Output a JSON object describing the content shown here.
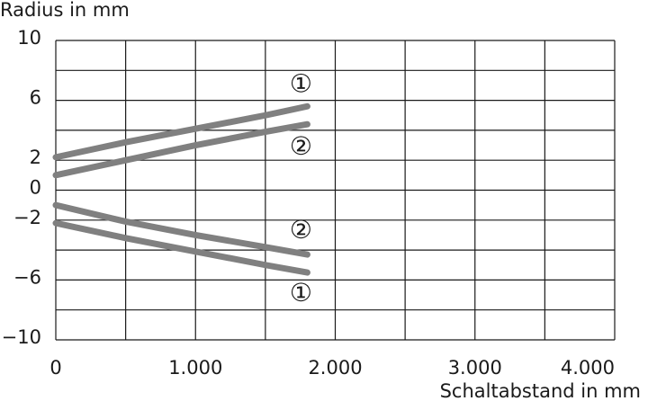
{
  "chart_data": {
    "type": "line",
    "y_label": "Radius in mm",
    "x_label": "Schaltabstand in mm",
    "xlim": [
      0,
      4000
    ],
    "ylim": [
      -10,
      10
    ],
    "xticks": [
      0,
      {
        "value": 1000,
        "label": "1.000"
      },
      {
        "value": 2000,
        "label": "2.000"
      },
      {
        "value": 3000,
        "label": "3.000"
      },
      {
        "value": 4000,
        "label": "4.000"
      }
    ],
    "yticks": [
      10,
      6,
      2,
      0,
      {
        "value": -2,
        "label": "−2"
      },
      {
        "value": -6,
        "label": "−6"
      },
      {
        "value": -10,
        "label": "−10"
      }
    ],
    "xgrid": [
      0,
      500,
      1000,
      1500,
      2000,
      2500,
      3000,
      3500,
      4000
    ],
    "ygrid": [
      10,
      8,
      6,
      4,
      2,
      0,
      -2,
      -4,
      -6,
      -8,
      -10
    ],
    "x": [
      0,
      500,
      1000,
      1500,
      1800
    ],
    "series": [
      {
        "name": "①",
        "color": "#808080",
        "values": [
          2.2,
          3.2,
          4.1,
          5.0,
          5.6
        ]
      },
      {
        "name": "②",
        "color": "#808080",
        "values": [
          1.0,
          2.0,
          3.0,
          3.9,
          4.4
        ]
      },
      {
        "name": "②",
        "color": "#808080",
        "values": [
          -1.0,
          -2.1,
          -3.0,
          -3.8,
          -4.3
        ]
      },
      {
        "name": "①",
        "color": "#808080",
        "values": [
          -2.2,
          -3.2,
          -4.1,
          -5.0,
          -5.5
        ]
      }
    ]
  }
}
